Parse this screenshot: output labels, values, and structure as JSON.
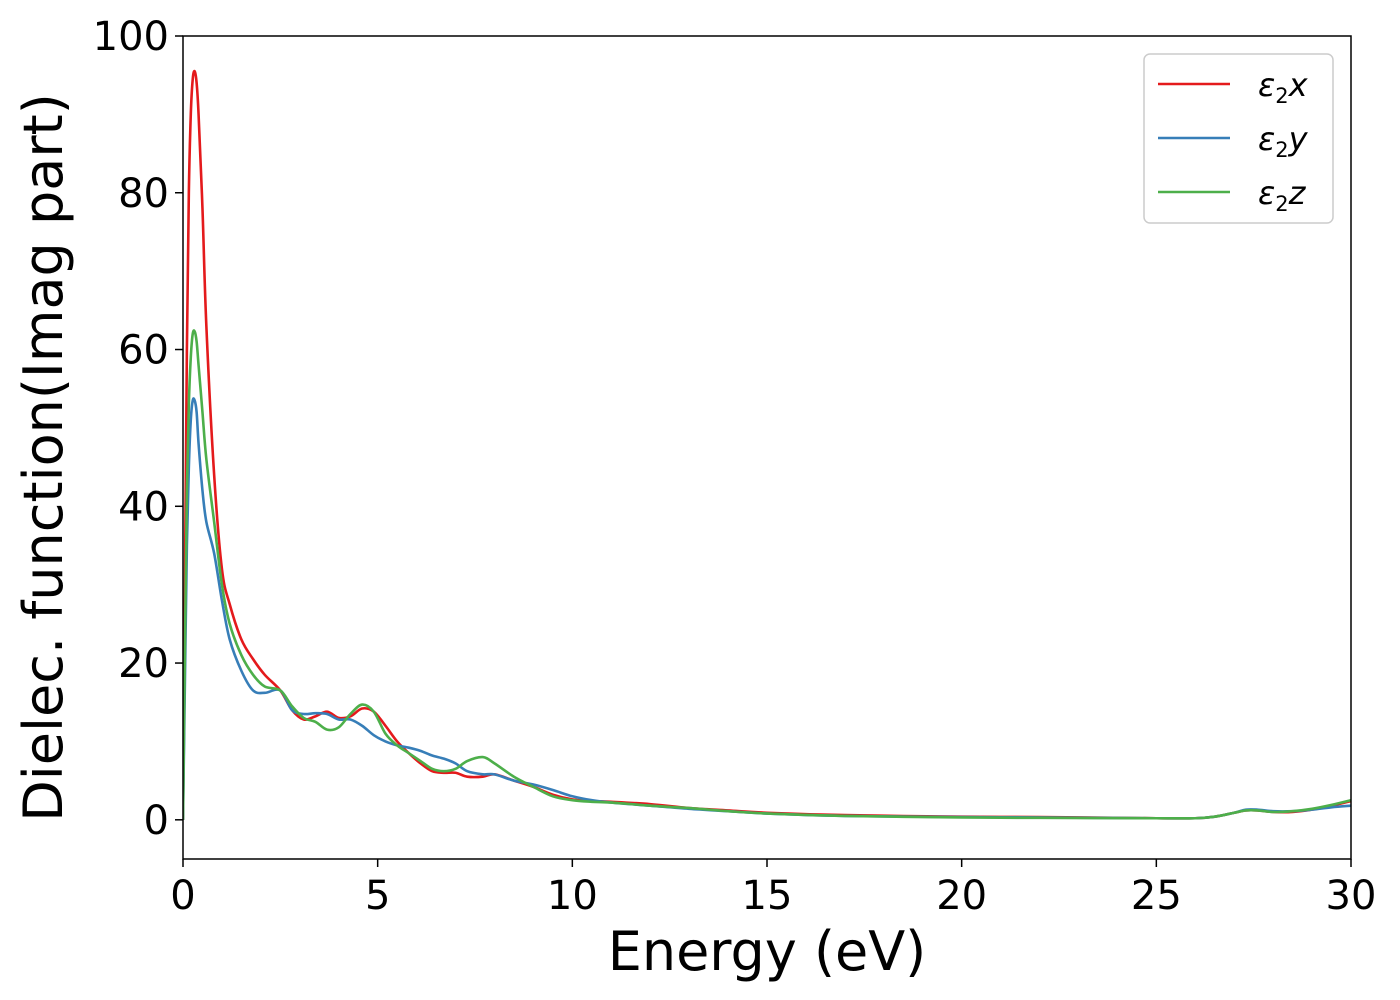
{
  "chart_data": {
    "type": "line",
    "xlabel": "Energy (eV)",
    "ylabel": "Dielec. function(Imag part)",
    "xlim": [
      0,
      30
    ],
    "ylim": [
      -5,
      100
    ],
    "xticks": [
      0,
      5,
      10,
      15,
      20,
      25,
      30
    ],
    "yticks": [
      0,
      20,
      40,
      60,
      80,
      100
    ],
    "grid": false,
    "legend_position": "top-right",
    "series": [
      {
        "name": "ε2x",
        "legend": {
          "base": "ε",
          "sub": "2",
          "var": "x"
        },
        "color": "#e41a1c",
        "x": [
          0,
          0.05,
          0.1,
          0.15,
          0.2,
          0.25,
          0.3,
          0.35,
          0.4,
          0.5,
          0.6,
          0.8,
          1.0,
          1.2,
          1.5,
          1.8,
          2.1,
          2.5,
          2.8,
          3.1,
          3.4,
          3.7,
          4.0,
          4.3,
          4.6,
          4.9,
          5.2,
          5.5,
          5.8,
          6.1,
          6.4,
          6.7,
          7.0,
          7.3,
          7.7,
          8.0,
          8.5,
          9.0,
          9.5,
          10.0,
          10.5,
          11,
          12,
          13,
          14,
          15,
          17,
          20,
          22,
          25,
          26,
          26.5,
          27,
          27.3,
          27.6,
          28,
          28.5,
          29,
          29.5,
          30
        ],
        "y": [
          0,
          30,
          60,
          80,
          90,
          94.5,
          95.5,
          94,
          90,
          78,
          63,
          44,
          32,
          27.5,
          23,
          20.5,
          18.5,
          16.5,
          14,
          12.8,
          13.2,
          13.8,
          13,
          13.2,
          14.2,
          13.8,
          12,
          10,
          8.5,
          7.2,
          6.2,
          6,
          6,
          5.5,
          5.5,
          5.8,
          5,
          4.2,
          3.2,
          2.6,
          2.4,
          2.3,
          2.0,
          1.5,
          1.2,
          0.9,
          0.6,
          0.4,
          0.35,
          0.2,
          0.2,
          0.4,
          0.9,
          1.2,
          1.2,
          1.0,
          1.0,
          1.3,
          1.8,
          2.4
        ]
      },
      {
        "name": "ε2y",
        "legend": {
          "base": "ε",
          "sub": "2",
          "var": "y"
        },
        "color": "#377eb8",
        "x": [
          0,
          0.05,
          0.1,
          0.15,
          0.2,
          0.25,
          0.3,
          0.35,
          0.4,
          0.5,
          0.6,
          0.8,
          1.0,
          1.2,
          1.5,
          1.8,
          2.1,
          2.5,
          2.8,
          3.1,
          3.4,
          3.7,
          4.0,
          4.3,
          4.6,
          4.9,
          5.2,
          5.5,
          5.8,
          6.1,
          6.4,
          6.7,
          7.0,
          7.3,
          7.7,
          8.0,
          8.5,
          9.0,
          9.5,
          10.0,
          10.5,
          11,
          12,
          13,
          14,
          15,
          17,
          20,
          22,
          25,
          26,
          26.5,
          27,
          27.3,
          27.6,
          28,
          28.5,
          29,
          29.5,
          30
        ],
        "y": [
          0,
          18,
          35,
          45,
          51,
          53.5,
          53.5,
          52,
          48,
          42,
          38,
          34,
          28,
          23,
          19,
          16.5,
          16.2,
          16.5,
          14,
          13.5,
          13.6,
          13.5,
          12.8,
          12.8,
          12,
          10.8,
          10,
          9.5,
          9.2,
          8.8,
          8.2,
          7.8,
          7.2,
          6.2,
          5.8,
          5.8,
          5,
          4.5,
          3.8,
          3.0,
          2.5,
          2.2,
          1.8,
          1.4,
          1.1,
          0.8,
          0.5,
          0.35,
          0.3,
          0.2,
          0.2,
          0.4,
          0.9,
          1.3,
          1.3,
          1.1,
          1.1,
          1.3,
          1.6,
          1.8
        ]
      },
      {
        "name": "ε2z",
        "legend": {
          "base": "ε",
          "sub": "2",
          "var": "z"
        },
        "color": "#4daf4a",
        "x": [
          0,
          0.05,
          0.1,
          0.15,
          0.2,
          0.25,
          0.3,
          0.35,
          0.4,
          0.5,
          0.6,
          0.8,
          1.0,
          1.2,
          1.5,
          1.8,
          2.1,
          2.5,
          2.8,
          3.1,
          3.4,
          3.7,
          4.0,
          4.3,
          4.6,
          4.9,
          5.2,
          5.5,
          5.8,
          6.1,
          6.4,
          6.7,
          7.0,
          7.3,
          7.7,
          8.0,
          8.5,
          9.0,
          9.5,
          10.0,
          10.5,
          11,
          12,
          13,
          14,
          15,
          17,
          20,
          22,
          25,
          26,
          26.5,
          27,
          27.3,
          27.6,
          28,
          28.5,
          29,
          29.5,
          30
        ],
        "y": [
          0,
          22,
          42,
          53,
          59,
          62,
          62.3,
          61,
          58,
          52,
          46,
          38,
          30,
          25,
          21,
          18.5,
          17,
          16.5,
          14.5,
          13,
          12.5,
          11.5,
          11.8,
          13.5,
          14.7,
          13.8,
          11,
          9.5,
          8.5,
          7.5,
          6.5,
          6.2,
          6.5,
          7.5,
          8,
          7.2,
          5.5,
          4.2,
          3.0,
          2.5,
          2.3,
          2.2,
          1.8,
          1.5,
          1.1,
          0.8,
          0.5,
          0.3,
          0.25,
          0.2,
          0.2,
          0.4,
          0.9,
          1.2,
          1.2,
          1.0,
          1.1,
          1.4,
          1.9,
          2.5
        ]
      }
    ]
  }
}
